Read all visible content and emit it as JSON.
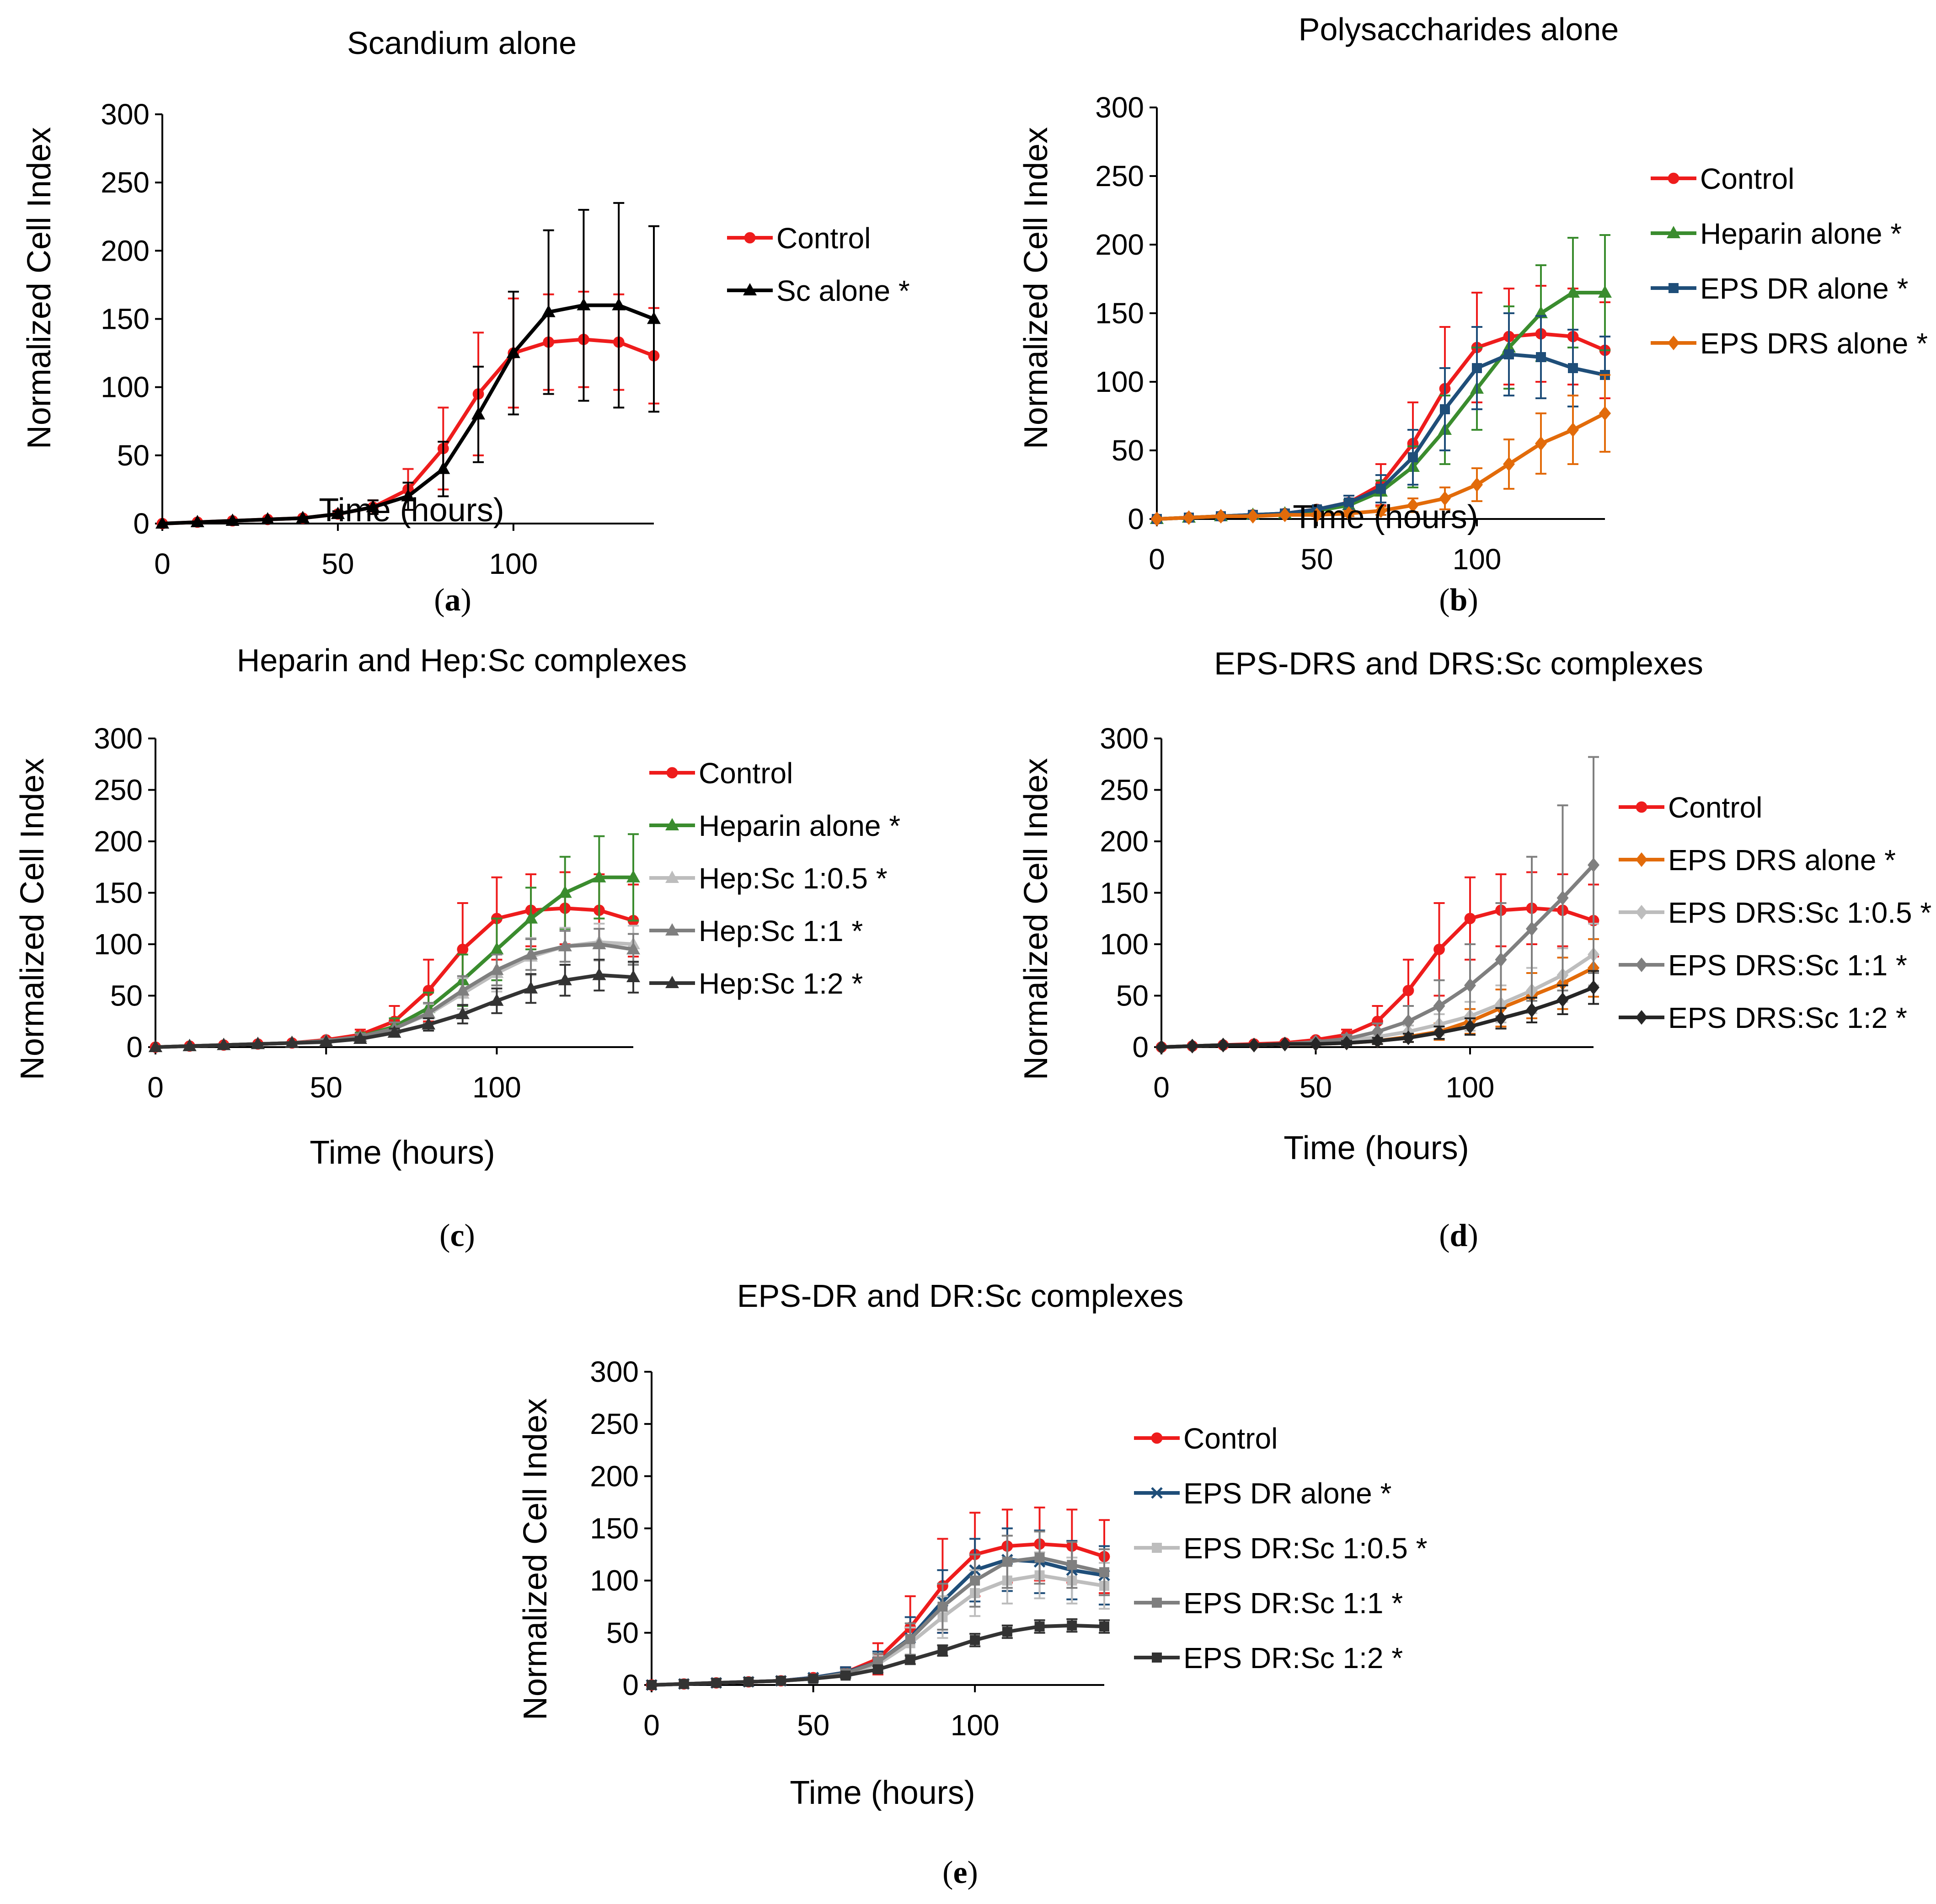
{
  "chart_data": [
    {
      "type": "line",
      "title": "Scandium alone",
      "caption": "(a)",
      "caption_letter": "a",
      "xlabel": "Time (hours)",
      "ylabel": "Normalized Cell Index",
      "xlim": [
        0,
        140
      ],
      "ylim": [
        0,
        300
      ],
      "xticks": [
        0,
        50,
        100
      ],
      "yticks": [
        0,
        50,
        100,
        150,
        200,
        250,
        300
      ],
      "x": [
        0,
        10,
        20,
        30,
        40,
        50,
        60,
        70,
        80,
        90,
        100,
        110,
        120,
        130,
        140
      ],
      "series": [
        {
          "name": "Control",
          "color": "#ee1c1c",
          "marker": "circle",
          "values": [
            0,
            1,
            2,
            3,
            4,
            7,
            12,
            25,
            55,
            95,
            125,
            133,
            135,
            133,
            123
          ],
          "errors": [
            0,
            0,
            0,
            0,
            0,
            2,
            5,
            15,
            30,
            45,
            40,
            35,
            35,
            35,
            35
          ]
        },
        {
          "name": "Sc alone *",
          "color": "#000000",
          "marker": "triangle",
          "values": [
            0,
            1,
            2,
            3,
            4,
            7,
            12,
            20,
            40,
            80,
            125,
            155,
            160,
            160,
            150
          ],
          "errors": [
            0,
            0,
            0,
            0,
            0,
            2,
            5,
            10,
            20,
            35,
            45,
            60,
            70,
            75,
            68
          ]
        }
      ]
    },
    {
      "type": "line",
      "title": "Polysaccharides alone",
      "caption": "(b)",
      "caption_letter": "b",
      "xlabel": "Time (hours)",
      "ylabel": "Normalized Cell Index",
      "xlim": [
        0,
        140
      ],
      "ylim": [
        0,
        300
      ],
      "xticks": [
        0,
        50,
        100
      ],
      "yticks": [
        0,
        50,
        100,
        150,
        200,
        250,
        300
      ],
      "x": [
        0,
        10,
        20,
        30,
        40,
        50,
        60,
        70,
        80,
        90,
        100,
        110,
        120,
        130,
        140
      ],
      "series": [
        {
          "name": "Control",
          "color": "#ee1c1c",
          "marker": "circle",
          "values": [
            0,
            1,
            2,
            3,
            4,
            7,
            12,
            25,
            55,
            95,
            125,
            133,
            135,
            133,
            123
          ],
          "errors": [
            0,
            0,
            0,
            0,
            0,
            2,
            5,
            15,
            30,
            45,
            40,
            35,
            35,
            35,
            35
          ]
        },
        {
          "name": "Heparin alone *",
          "color": "#3a8c2e",
          "marker": "triangle",
          "values": [
            0,
            1,
            2,
            3,
            4,
            6,
            10,
            20,
            38,
            65,
            95,
            125,
            150,
            165,
            165
          ],
          "errors": [
            0,
            0,
            0,
            0,
            0,
            2,
            4,
            8,
            15,
            25,
            30,
            30,
            35,
            40,
            42
          ]
        },
        {
          "name": "EPS DR alone *",
          "color": "#1f4e79",
          "marker": "square",
          "values": [
            0,
            1,
            2,
            3,
            4,
            7,
            12,
            22,
            45,
            80,
            110,
            120,
            118,
            110,
            105
          ],
          "errors": [
            0,
            0,
            0,
            0,
            0,
            2,
            5,
            10,
            20,
            30,
            30,
            30,
            30,
            28,
            28
          ]
        },
        {
          "name": "EPS DRS alone *",
          "color": "#e26b0a",
          "marker": "diamond",
          "values": [
            0,
            1,
            2,
            2,
            3,
            3,
            4,
            6,
            10,
            15,
            25,
            40,
            55,
            65,
            77
          ],
          "errors": [
            0,
            0,
            0,
            0,
            0,
            1,
            2,
            3,
            5,
            8,
            12,
            18,
            22,
            25,
            28
          ]
        }
      ]
    },
    {
      "type": "line",
      "title": "Heparin and Hep:Sc complexes",
      "caption": "(c)",
      "caption_letter": "c",
      "xlabel": "Time (hours)",
      "ylabel": "Normalized Cell Index",
      "xlim": [
        0,
        140
      ],
      "ylim": [
        0,
        300
      ],
      "xticks": [
        0,
        50,
        100
      ],
      "yticks": [
        0,
        50,
        100,
        150,
        200,
        250,
        300
      ],
      "x": [
        0,
        10,
        20,
        30,
        40,
        50,
        60,
        70,
        80,
        90,
        100,
        110,
        120,
        130,
        140
      ],
      "series": [
        {
          "name": "Control",
          "color": "#ee1c1c",
          "marker": "circle",
          "values": [
            0,
            1,
            2,
            3,
            4,
            7,
            12,
            25,
            55,
            95,
            125,
            133,
            135,
            133,
            123
          ],
          "errors": [
            0,
            0,
            0,
            0,
            0,
            2,
            5,
            15,
            30,
            45,
            40,
            35,
            35,
            35,
            35
          ]
        },
        {
          "name": "Heparin alone *",
          "color": "#3a8c2e",
          "marker": "triangle",
          "values": [
            0,
            1,
            2,
            3,
            4,
            6,
            10,
            20,
            38,
            65,
            95,
            125,
            150,
            165,
            165
          ],
          "errors": [
            0,
            0,
            0,
            0,
            0,
            2,
            4,
            8,
            15,
            25,
            30,
            30,
            35,
            40,
            42
          ]
        },
        {
          "name": "Hep:Sc 1:0.5 *",
          "color": "#bdbdbd",
          "marker": "triangle",
          "values": [
            0,
            1,
            2,
            3,
            4,
            6,
            10,
            18,
            32,
            52,
            72,
            88,
            98,
            102,
            100
          ],
          "errors": [
            0,
            0,
            0,
            0,
            0,
            2,
            3,
            6,
            10,
            15,
            18,
            18,
            18,
            18,
            18
          ]
        },
        {
          "name": "Hep:Sc 1:1 *",
          "color": "#7f7f7f",
          "marker": "triangle",
          "values": [
            0,
            1,
            2,
            3,
            4,
            6,
            10,
            18,
            33,
            55,
            75,
            90,
            98,
            100,
            95
          ],
          "errors": [
            0,
            0,
            0,
            0,
            0,
            2,
            3,
            6,
            10,
            14,
            15,
            15,
            15,
            15,
            15
          ]
        },
        {
          "name": "Hep:Sc 1:2 *",
          "color": "#333333",
          "marker": "triangle",
          "values": [
            0,
            1,
            2,
            3,
            4,
            5,
            8,
            14,
            22,
            32,
            45,
            57,
            65,
            70,
            68
          ],
          "errors": [
            0,
            0,
            0,
            0,
            0,
            1,
            2,
            4,
            6,
            9,
            12,
            14,
            15,
            15,
            15
          ]
        }
      ]
    },
    {
      "type": "line",
      "title": "EPS-DRS and DRS:Sc complexes",
      "caption": "(d)",
      "caption_letter": "d",
      "xlabel": "Time (hours)",
      "ylabel": "Normalized Cell Index",
      "xlim": [
        0,
        140
      ],
      "ylim": [
        0,
        300
      ],
      "xticks": [
        0,
        50,
        100
      ],
      "yticks": [
        0,
        50,
        100,
        150,
        200,
        250,
        300
      ],
      "x": [
        0,
        10,
        20,
        30,
        40,
        50,
        60,
        70,
        80,
        90,
        100,
        110,
        120,
        130,
        140
      ],
      "series": [
        {
          "name": "Control",
          "color": "#ee1c1c",
          "marker": "circle",
          "values": [
            0,
            1,
            2,
            3,
            4,
            7,
            12,
            25,
            55,
            95,
            125,
            133,
            135,
            133,
            123
          ],
          "errors": [
            0,
            0,
            0,
            0,
            0,
            2,
            5,
            15,
            30,
            45,
            40,
            35,
            35,
            35,
            35
          ]
        },
        {
          "name": "EPS DRS alone *",
          "color": "#e26b0a",
          "marker": "diamond",
          "values": [
            0,
            1,
            2,
            2,
            3,
            3,
            4,
            6,
            10,
            15,
            25,
            38,
            50,
            62,
            77
          ],
          "errors": [
            0,
            0,
            0,
            0,
            0,
            1,
            2,
            3,
            5,
            8,
            12,
            18,
            22,
            25,
            28
          ]
        },
        {
          "name": "EPS DRS:Sc 1:0.5 *",
          "color": "#bdbdbd",
          "marker": "diamond",
          "values": [
            0,
            1,
            2,
            2,
            3,
            4,
            6,
            10,
            15,
            22,
            30,
            42,
            55,
            70,
            90
          ],
          "errors": [
            0,
            0,
            0,
            0,
            0,
            1,
            2,
            4,
            6,
            10,
            14,
            18,
            22,
            26,
            30
          ]
        },
        {
          "name": "EPS DRS:Sc 1:1 *",
          "color": "#7f7f7f",
          "marker": "diamond",
          "values": [
            0,
            1,
            2,
            2,
            3,
            5,
            8,
            15,
            25,
            40,
            60,
            85,
            115,
            145,
            177
          ],
          "errors": [
            0,
            0,
            0,
            0,
            0,
            2,
            4,
            8,
            15,
            25,
            40,
            55,
            70,
            90,
            105
          ]
        },
        {
          "name": "EPS DRS:Sc 1:2 *",
          "color": "#262626",
          "marker": "diamond",
          "values": [
            0,
            1,
            2,
            2,
            3,
            3,
            4,
            6,
            9,
            14,
            20,
            28,
            36,
            46,
            58
          ],
          "errors": [
            0,
            0,
            0,
            0,
            0,
            1,
            2,
            3,
            4,
            6,
            8,
            10,
            12,
            14,
            16
          ]
        }
      ]
    },
    {
      "type": "line",
      "title": "EPS-DR and DR:Sc complexes",
      "caption": "(e)",
      "caption_letter": "e",
      "xlabel": "Time (hours)",
      "ylabel": "Normalized Cell Index",
      "xlim": [
        0,
        140
      ],
      "ylim": [
        0,
        300
      ],
      "xticks": [
        0,
        50,
        100
      ],
      "yticks": [
        0,
        50,
        100,
        150,
        200,
        250,
        300
      ],
      "x": [
        0,
        10,
        20,
        30,
        40,
        50,
        60,
        70,
        80,
        90,
        100,
        110,
        120,
        130,
        140
      ],
      "series": [
        {
          "name": "Control",
          "color": "#ee1c1c",
          "marker": "circle",
          "values": [
            0,
            1,
            2,
            3,
            4,
            7,
            12,
            25,
            55,
            95,
            125,
            133,
            135,
            133,
            123
          ],
          "errors": [
            0,
            0,
            0,
            0,
            0,
            2,
            5,
            15,
            30,
            45,
            40,
            35,
            35,
            35,
            35
          ]
        },
        {
          "name": "EPS DR alone *",
          "color": "#1f4e79",
          "marker": "x",
          "values": [
            0,
            1,
            2,
            3,
            4,
            7,
            12,
            22,
            45,
            80,
            110,
            120,
            118,
            110,
            105
          ],
          "errors": [
            0,
            0,
            0,
            0,
            0,
            2,
            5,
            10,
            20,
            30,
            30,
            30,
            30,
            28,
            28
          ]
        },
        {
          "name": "EPS DR:Sc 1:0.5 *",
          "color": "#bdbdbd",
          "marker": "square",
          "values": [
            0,
            1,
            2,
            3,
            4,
            6,
            10,
            20,
            40,
            65,
            88,
            100,
            105,
            100,
            95
          ],
          "errors": [
            0,
            0,
            0,
            0,
            0,
            2,
            4,
            8,
            15,
            20,
            22,
            22,
            22,
            22,
            22
          ]
        },
        {
          "name": "EPS DR:Sc 1:1 *",
          "color": "#7f7f7f",
          "marker": "square",
          "values": [
            0,
            1,
            2,
            3,
            4,
            6,
            11,
            22,
            44,
            75,
            100,
            118,
            122,
            115,
            108
          ],
          "errors": [
            0,
            0,
            0,
            0,
            0,
            2,
            4,
            8,
            15,
            22,
            25,
            25,
            25,
            22,
            22
          ]
        },
        {
          "name": "EPS DR:Sc 1:2 *",
          "color": "#333333",
          "marker": "square",
          "values": [
            0,
            1,
            2,
            3,
            4,
            6,
            9,
            15,
            24,
            33,
            43,
            51,
            56,
            57,
            56
          ],
          "errors": [
            0,
            0,
            0,
            0,
            0,
            1,
            2,
            3,
            4,
            5,
            6,
            6,
            6,
            6,
            6
          ]
        }
      ]
    }
  ]
}
